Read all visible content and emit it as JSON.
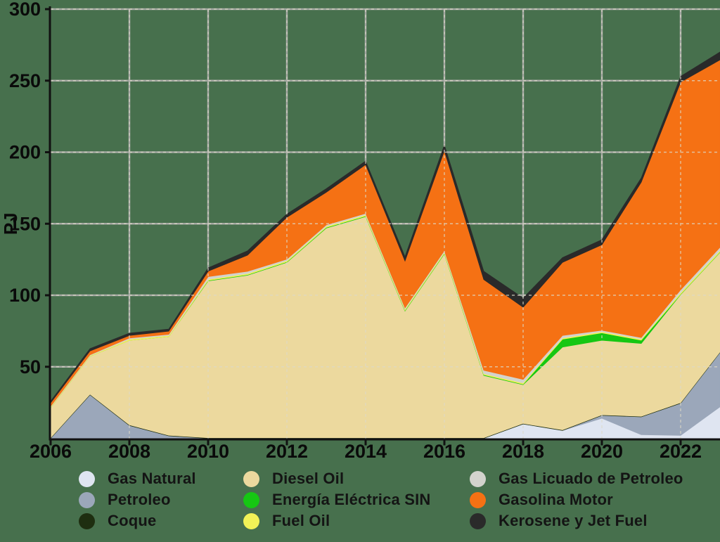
{
  "page": {
    "background_color": "#47704d"
  },
  "chart_data": {
    "type": "area",
    "stacked": true,
    "title": "",
    "xlabel": "",
    "ylabel": "PJ",
    "x": [
      2006,
      2007,
      2008,
      2009,
      2010,
      2011,
      2012,
      2013,
      2014,
      2015,
      2016,
      2017,
      2018,
      2019,
      2020,
      2021,
      2022,
      2023
    ],
    "xlim": [
      2006,
      2023
    ],
    "ylim": [
      0,
      300
    ],
    "xticks": [
      2006,
      2008,
      2010,
      2012,
      2014,
      2016,
      2018,
      2020,
      2022
    ],
    "yticks": [
      50,
      100,
      150,
      200,
      250,
      300
    ],
    "grid": {
      "solid_color": "#a6a9a4",
      "dashed_color": "#ddd9c8",
      "axis_color": "#111111",
      "tick_label_color": "#0a0a0a"
    },
    "series": [
      {
        "name": "Gas Natural",
        "color": "#dfe5f1",
        "values": [
          0,
          0,
          0,
          0,
          0,
          0,
          0,
          0,
          0,
          0,
          0,
          0,
          10,
          5.5,
          14,
          2.5,
          2,
          22
        ]
      },
      {
        "name": "Petroleo",
        "color": "#9ba7ba",
        "values": [
          0,
          30.4,
          9,
          1.7,
          0,
          0,
          0,
          0,
          0,
          0,
          0,
          0,
          0,
          0,
          2,
          12.5,
          22.5,
          38
        ]
      },
      {
        "name": "Coque",
        "color": "#1e2e10",
        "values": [
          0.4,
          0.4,
          0.4,
          0.4,
          0.4,
          0.4,
          0.4,
          0.4,
          0.4,
          0.4,
          0.4,
          0.4,
          0.4,
          0.4,
          0.4,
          0.4,
          0.4,
          0.4
        ]
      },
      {
        "name": "Diesel Oil",
        "color": "#ecd99e",
        "values": [
          21,
          26.6,
          59.1,
          69,
          109.6,
          113.6,
          122.6,
          146.6,
          154.6,
          88.6,
          128.6,
          43.6,
          27.1,
          57.9,
          52.1,
          50.9,
          75.6,
          69.6
        ]
      },
      {
        "name": "Energía Eléctrica SIN",
        "color": "#16c713",
        "values": [
          0,
          0,
          0,
          0,
          0.4,
          0.4,
          0.4,
          0.4,
          0.4,
          0.4,
          0.4,
          0.4,
          0.4,
          5.5,
          5.2,
          2.3,
          0.3,
          0.3
        ]
      },
      {
        "name": "Fuel Oil",
        "color": "#f2f257",
        "values": [
          0.5,
          0.5,
          0.8,
          0.8,
          0.8,
          0.8,
          0.8,
          0.8,
          0.8,
          0.8,
          0.8,
          0.8,
          0.8,
          0.8,
          0.8,
          0.8,
          1,
          1
        ]
      },
      {
        "name": "Gas Licuado de Petroleo",
        "color": "#d3d3cd",
        "values": [
          0.5,
          0.5,
          0.8,
          0.8,
          1.8,
          1.5,
          1,
          1,
          1,
          1,
          1,
          2.3,
          2.5,
          1.8,
          1,
          1,
          2,
          2.2
        ]
      },
      {
        "name": "Gasolina Motor",
        "color": "#f57114",
        "values": [
          2.3,
          2.7,
          1.8,
          2.2,
          3.8,
          11.3,
          29.3,
          22.8,
          34.1,
          32.8,
          69.8,
          63.5,
          50.4,
          51.1,
          59.8,
          108.6,
          145.2,
          131
        ]
      },
      {
        "name": "Kerosene y Jet Fuel",
        "color": "#2a2a2a",
        "values": [
          1.2,
          1.6,
          1.6,
          1.4,
          2.3,
          3,
          2.3,
          2.5,
          2.5,
          3,
          4,
          5.8,
          6.5,
          3.3,
          3.5,
          3,
          4,
          5.5
        ]
      }
    ],
    "legend": {
      "position": "bottom",
      "columns": [
        [
          "Gas Natural",
          "Petroleo",
          "Coque"
        ],
        [
          "Diesel Oil",
          "Energía Eléctrica SIN",
          "Fuel Oil"
        ],
        [
          "Gas Licuado de Petroleo",
          "Gasolina Motor",
          "Kerosene y Jet Fuel"
        ]
      ]
    }
  }
}
